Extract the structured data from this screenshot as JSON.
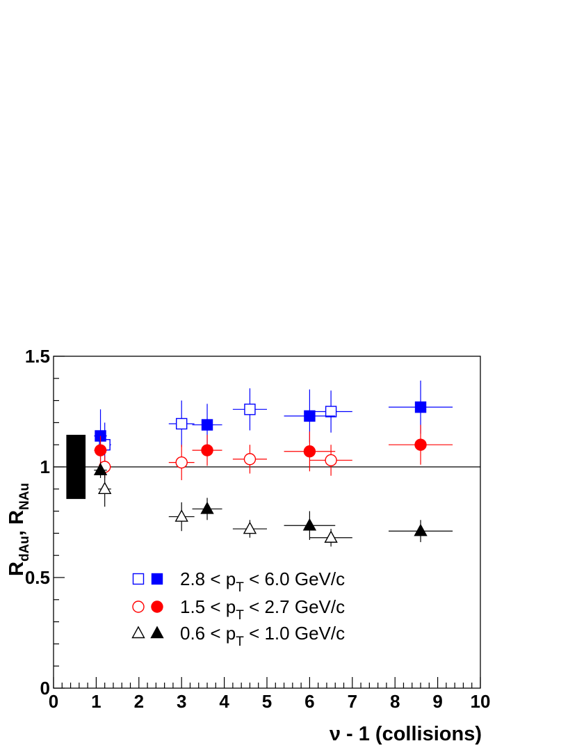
{
  "chart_data": {
    "type": "scatter",
    "xlabel": "ν - 1 (collisions)",
    "ylabel_main": "R",
    "ylabel_sub1": "dAu",
    "ylabel_sep": ", R",
    "ylabel_sub2": "NAu",
    "xlim": [
      0,
      10
    ],
    "ylim": [
      0,
      1.5
    ],
    "x_ticks": [
      "0",
      "1",
      "2",
      "3",
      "4",
      "5",
      "6",
      "7",
      "8",
      "9",
      "10"
    ],
    "y_ticks": [
      {
        "value": 0,
        "label": "0"
      },
      {
        "value": 0.5,
        "label": "0.5"
      },
      {
        "value": 1,
        "label": "1"
      },
      {
        "value": 1.5,
        "label": "1.5"
      }
    ],
    "reference_line": 1.0,
    "normalization_band": {
      "x": [
        0.3,
        0.75
      ],
      "y": [
        0.855,
        1.145
      ]
    },
    "legend_position": "lower-center",
    "series": [
      {
        "name": "2.8 < p_T < 6.0 GeV/c",
        "marker": "square",
        "filled": false,
        "color": "#0000ff",
        "points": [
          {
            "x": 1.2,
            "y": 1.1,
            "xerr": 0.15,
            "yerr": 0.1
          },
          {
            "x": 3.0,
            "y": 1.195,
            "xerr": 0.3,
            "yerr": 0.105
          },
          {
            "x": 4.6,
            "y": 1.26,
            "xerr": 0.4,
            "yerr": 0.095
          },
          {
            "x": 6.5,
            "y": 1.25,
            "xerr": 0.5,
            "yerr": 0.095
          }
        ]
      },
      {
        "name": "2.8 < p_T < 6.0 GeV/c",
        "marker": "square",
        "filled": true,
        "color": "#0000ff",
        "points": [
          {
            "x": 1.1,
            "y": 1.14,
            "xerr": 0.15,
            "yerr": 0.12
          },
          {
            "x": 3.6,
            "y": 1.19,
            "xerr": 0.35,
            "yerr": 0.095
          },
          {
            "x": 6.0,
            "y": 1.23,
            "xerr": 0.6,
            "yerr": 0.12
          },
          {
            "x": 8.6,
            "y": 1.27,
            "xerr": 0.75,
            "yerr": 0.12
          }
        ]
      },
      {
        "name": "1.5 < p_T < 2.7 GeV/c",
        "marker": "circle",
        "filled": false,
        "color": "#ff0000",
        "points": [
          {
            "x": 1.2,
            "y": 1.0,
            "xerr": 0.15,
            "yerr": 0.05
          },
          {
            "x": 3.0,
            "y": 1.02,
            "xerr": 0.3,
            "yerr": 0.08
          },
          {
            "x": 4.6,
            "y": 1.035,
            "xerr": 0.4,
            "yerr": 0.065
          },
          {
            "x": 6.5,
            "y": 1.03,
            "xerr": 0.5,
            "yerr": 0.07
          }
        ]
      },
      {
        "name": "1.5 < p_T < 2.7 GeV/c",
        "marker": "circle",
        "filled": true,
        "color": "#ff0000",
        "points": [
          {
            "x": 1.1,
            "y": 1.075,
            "xerr": 0.15,
            "yerr": 0.065
          },
          {
            "x": 3.6,
            "y": 1.075,
            "xerr": 0.35,
            "yerr": 0.07
          },
          {
            "x": 6.0,
            "y": 1.07,
            "xerr": 0.6,
            "yerr": 0.09
          },
          {
            "x": 8.6,
            "y": 1.1,
            "xerr": 0.75,
            "yerr": 0.09
          }
        ]
      },
      {
        "name": "0.6 < p_T < 1.0 GeV/c",
        "marker": "triangle",
        "filled": false,
        "color": "#000000",
        "points": [
          {
            "x": 1.2,
            "y": 0.9,
            "xerr": 0.15,
            "yerr": 0.08
          },
          {
            "x": 3.0,
            "y": 0.775,
            "xerr": 0.3,
            "yerr": 0.065
          },
          {
            "x": 4.6,
            "y": 0.72,
            "xerr": 0.4,
            "yerr": 0.04
          },
          {
            "x": 6.5,
            "y": 0.68,
            "xerr": 0.5,
            "yerr": 0.04
          }
        ]
      },
      {
        "name": "0.6 < p_T < 1.0 GeV/c",
        "marker": "triangle",
        "filled": true,
        "color": "#000000",
        "points": [
          {
            "x": 1.1,
            "y": 0.985,
            "xerr": 0.15,
            "yerr": 0.035
          },
          {
            "x": 3.6,
            "y": 0.81,
            "xerr": 0.35,
            "yerr": 0.05
          },
          {
            "x": 6.0,
            "y": 0.735,
            "xerr": 0.6,
            "yerr": 0.065
          },
          {
            "x": 8.6,
            "y": 0.71,
            "xerr": 0.75,
            "yerr": 0.05
          }
        ]
      }
    ],
    "legend": [
      {
        "marker": "square",
        "color": "#0000ff",
        "prefix": "2.8 < p",
        "sub": "T",
        "suffix": " < 6.0 GeV/c"
      },
      {
        "marker": "circle",
        "color": "#ff0000",
        "prefix": "1.5 < p",
        "sub": "T",
        "suffix": " < 2.7 GeV/c"
      },
      {
        "marker": "triangle",
        "color": "#000000",
        "prefix": "0.6 < p",
        "sub": "T",
        "suffix": " < 1.0 GeV/c"
      }
    ]
  }
}
